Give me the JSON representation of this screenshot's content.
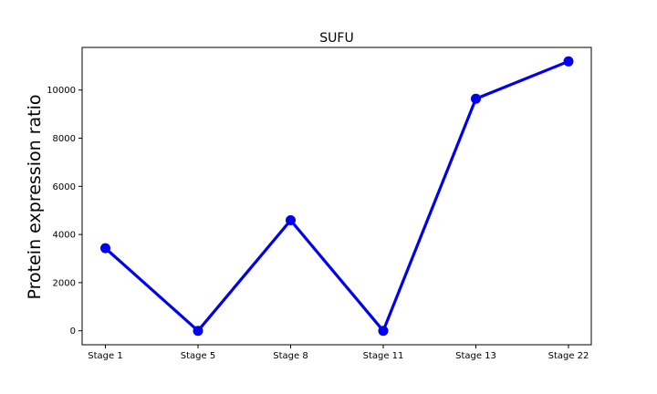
{
  "chart_data": {
    "type": "line",
    "title": "SUFU",
    "xlabel": "",
    "ylabel": "Protein expression ratio",
    "categories": [
      "Stage 1",
      "Stage 5",
      "Stage 8",
      "Stage 11",
      "Stage 13",
      "Stage 22"
    ],
    "series": [
      {
        "values": [
          3430,
          0,
          4590,
          0,
          9640,
          11190
        ],
        "color": "#0000ee"
      }
    ],
    "yticks": [
      0,
      2000,
      4000,
      6000,
      8000,
      10000
    ],
    "ylim": [
      -580,
      11770
    ],
    "grid": false,
    "legend": "none"
  }
}
